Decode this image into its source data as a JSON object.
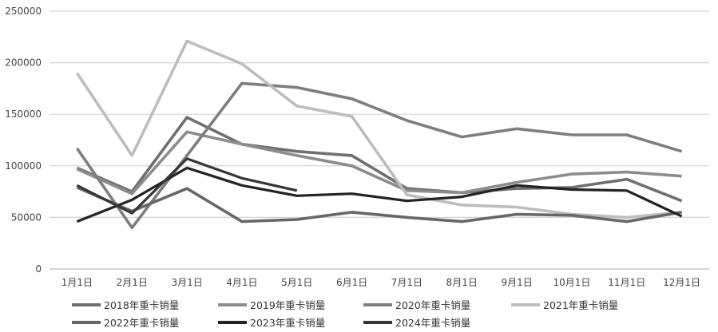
{
  "chart_data": {
    "type": "line",
    "title": "",
    "xlabel": "",
    "ylabel": "",
    "ylim": [
      0,
      250000
    ],
    "yticks": [
      0,
      50000,
      100000,
      150000,
      200000,
      250000
    ],
    "grid": true,
    "legend_position": "bottom",
    "categories": [
      "1月1日",
      "2月1日",
      "3月1日",
      "4月1日",
      "5月1日",
      "6月1日",
      "7月1日",
      "8月1日",
      "9月1日",
      "10月1日",
      "11月1日",
      "12月1日"
    ],
    "series": [
      {
        "name": "2018年重卡销量",
        "color": "#6f6f6f",
        "values": [
          98000,
          75000,
          147000,
          121000,
          114000,
          110000,
          78000,
          74000,
          78000,
          79000,
          87000,
          66000
        ]
      },
      {
        "name": "2019年重卡销量",
        "color": "#8c8c8c",
        "values": [
          97000,
          73000,
          133000,
          121000,
          110000,
          100000,
          76000,
          74000,
          84000,
          92000,
          94000,
          90000
        ]
      },
      {
        "name": "2020年重卡销量",
        "color": "#7e7e7e",
        "values": [
          117000,
          40000,
          110000,
          180000,
          176000,
          165000,
          144000,
          128000,
          136000,
          130000,
          130000,
          114000
        ]
      },
      {
        "name": "2021年重卡销量",
        "color": "#bdbdbd",
        "values": [
          190000,
          110000,
          221000,
          199000,
          158000,
          148000,
          72000,
          62000,
          60000,
          53000,
          50000,
          55000
        ]
      },
      {
        "name": "2022年重卡销量",
        "color": "#676767",
        "values": [
          79000,
          56000,
          78000,
          46000,
          48000,
          55000,
          50000,
          46000,
          53000,
          52000,
          46000,
          55000
        ]
      },
      {
        "name": "2023年重卡销量",
        "color": "#222222",
        "values": [
          46000,
          67000,
          98000,
          81000,
          71000,
          73000,
          66000,
          70000,
          81000,
          77000,
          76000,
          51000
        ]
      },
      {
        "name": "2024年重卡销量",
        "color": "#363636",
        "values": [
          81000,
          54000,
          107000,
          88000,
          76000,
          null,
          null,
          null,
          null,
          null,
          null,
          null
        ]
      }
    ]
  }
}
